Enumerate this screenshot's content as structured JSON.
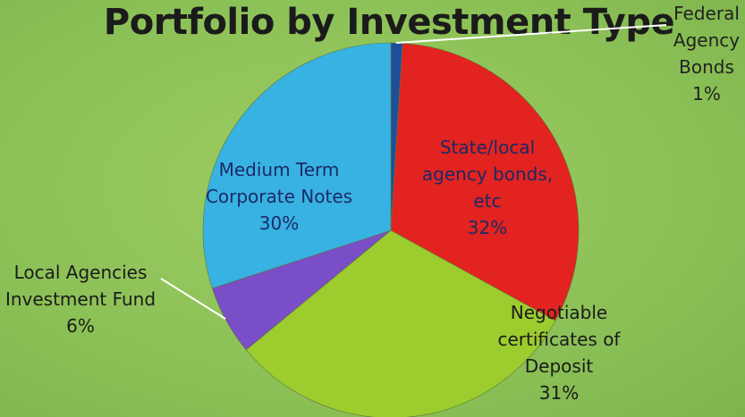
{
  "chart_data": {
    "type": "pie",
    "title": "Portfolio by Investment Type",
    "categories": [
      "Federal Agency Bonds",
      "State/local agency bonds, etc",
      "Negotiable certificates of Deposit",
      "Local Agencies Investment Fund",
      "Medium Term Corporate Notes"
    ],
    "values": [
      1,
      32,
      31,
      6,
      30
    ],
    "value_labels": [
      "1%",
      "32%",
      "31%",
      "6%",
      "30%"
    ],
    "colors": [
      "#1f4e9a",
      "#e2231f",
      "#9ccc2e",
      "#7a4ec6",
      "#38b2e2"
    ]
  }
}
